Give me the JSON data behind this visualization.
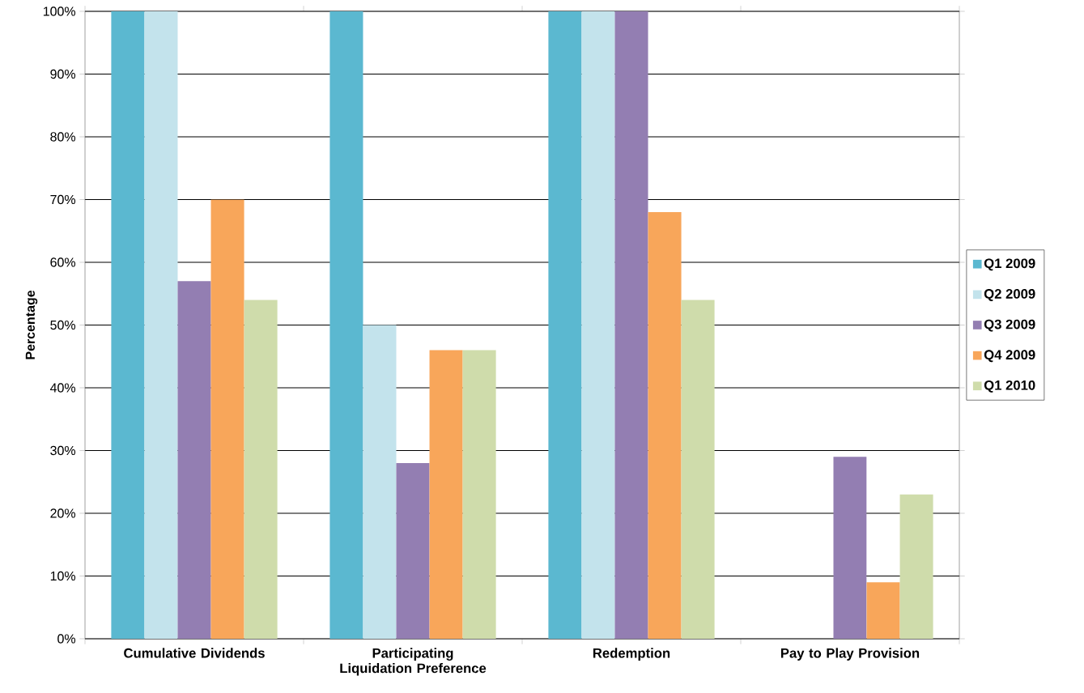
{
  "chart_data": {
    "type": "bar",
    "ylabel": "Percentage",
    "categories": [
      "Cumulative Dividends",
      "Participating Liquidation Preference",
      "Redemption",
      "Pay to Play Provision"
    ],
    "series": [
      {
        "name": "Q1 2009",
        "color": "#5bb8d0",
        "values": [
          100,
          100,
          100,
          0
        ]
      },
      {
        "name": "Q2 2009",
        "color": "#c3e3ec",
        "values": [
          100,
          50,
          100,
          0
        ]
      },
      {
        "name": "Q3 2009",
        "color": "#937eb2",
        "values": [
          57,
          28,
          100,
          29
        ]
      },
      {
        "name": "Q4 2009",
        "color": "#f8a65a",
        "values": [
          70,
          46,
          68,
          9
        ]
      },
      {
        "name": "Q1 2010",
        "color": "#cfdcab",
        "values": [
          54,
          46,
          54,
          23
        ]
      }
    ],
    "ylim": [
      0,
      100
    ],
    "yticks": [
      {
        "value": 0,
        "label": "0%"
      },
      {
        "value": 10,
        "label": "10%"
      },
      {
        "value": 20,
        "label": "20%"
      },
      {
        "value": 30,
        "label": "30%"
      },
      {
        "value": 40,
        "label": "40%"
      },
      {
        "value": 50,
        "label": "50%"
      },
      {
        "value": 60,
        "label": "60%"
      },
      {
        "value": 70,
        "label": "70%"
      },
      {
        "value": 80,
        "label": "80%"
      },
      {
        "value": 90,
        "label": "90%"
      },
      {
        "value": 100,
        "label": "100%"
      }
    ],
    "grid": "y",
    "legend": "right"
  }
}
